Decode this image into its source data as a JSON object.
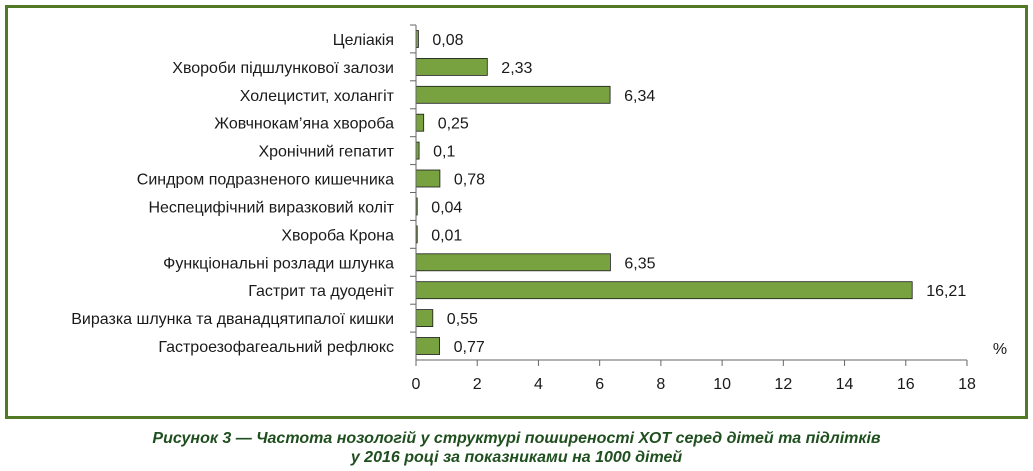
{
  "chart_data": {
    "type": "bar",
    "orientation": "horizontal",
    "categories": [
      "Целіакія",
      "Хвороби підшлункової залози",
      "Холецистит, холангіт",
      "Жовчнокам’яна хвороба",
      "Хронічний гепатит",
      "Синдром подразненого кишечника",
      "Неспецифічний виразковий коліт",
      "Хвороба Крона",
      "Функціональні розлади шлунка",
      "Гастрит та дуоденіт",
      "Виразка шлунка та дванадцятипалої кишки",
      "Гастроезофагеальний рефлюкс"
    ],
    "values": [
      0.08,
      2.33,
      6.34,
      0.25,
      0.1,
      0.78,
      0.04,
      0.01,
      6.35,
      16.21,
      0.55,
      0.77
    ],
    "value_labels": [
      "0,08",
      "2,33",
      "6,34",
      "0,25",
      "0,1",
      "0,78",
      "0,04",
      "0,01",
      "6,35",
      "16,21",
      "0,55",
      "0,77"
    ],
    "xlim": [
      0,
      18
    ],
    "xticks": [
      0,
      2,
      4,
      6,
      8,
      10,
      12,
      14,
      16,
      18
    ],
    "unit_label": "%",
    "grid": false,
    "bar_color": "#77a23f",
    "bar_edge_color": "#1a1a1a",
    "frame_color": "#527a26"
  },
  "caption": {
    "line1": "Рисунок 3 — Частота нозологій у структурі поширеності ХОТ серед дітей та підлітків",
    "line2": "у 2016 році за показниками на 1000 дітей"
  }
}
